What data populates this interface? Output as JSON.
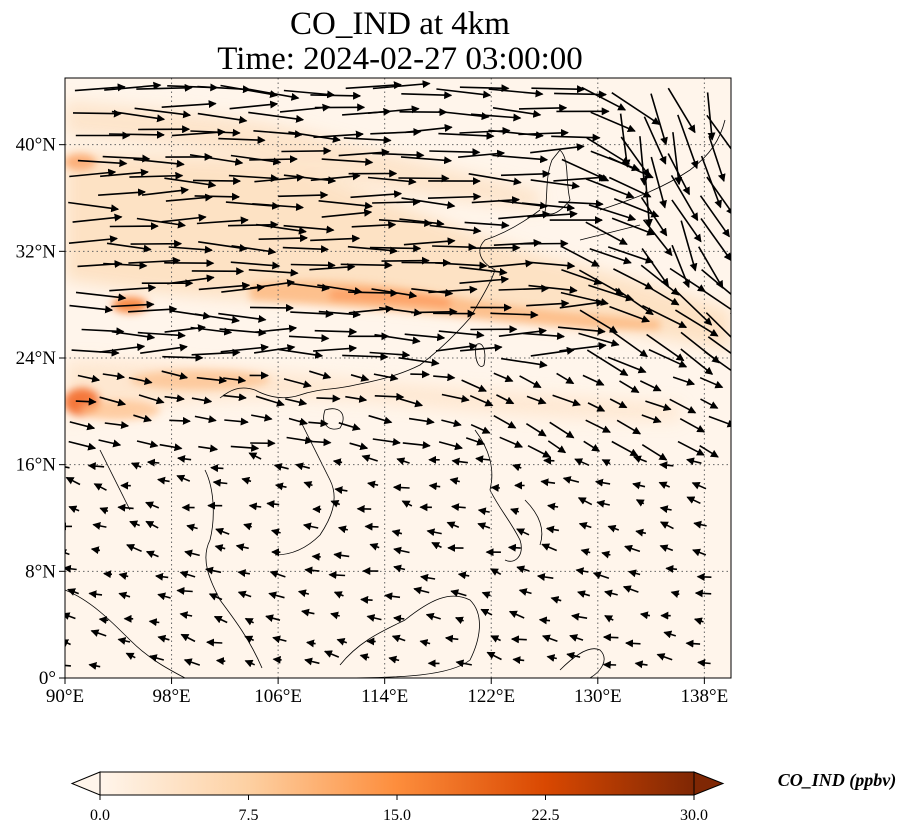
{
  "title": {
    "line1": "CO_IND at 4km",
    "line2": "Time: 2024-02-27 03:00:00"
  },
  "map": {
    "lon_range": [
      90,
      140
    ],
    "lat_range": [
      0,
      45
    ],
    "gridlines": "dotted",
    "x_ticks": [
      {
        "value": 90,
        "label": "90°E"
      },
      {
        "value": 98,
        "label": "98°E"
      },
      {
        "value": 106,
        "label": "106°E"
      },
      {
        "value": 114,
        "label": "114°E"
      },
      {
        "value": 122,
        "label": "122°E"
      },
      {
        "value": 130,
        "label": "130°E"
      },
      {
        "value": 138,
        "label": "138°E"
      }
    ],
    "y_ticks": [
      {
        "value": 0,
        "label": "0°"
      },
      {
        "value": 8,
        "label": "8°N"
      },
      {
        "value": 16,
        "label": "16°N"
      },
      {
        "value": 24,
        "label": "24°N"
      },
      {
        "value": 32,
        "label": "32°N"
      },
      {
        "value": 40,
        "label": "40°N"
      }
    ],
    "plume_description_visible": "shaded CO concentration with wind vectors"
  },
  "colorbar": {
    "label": "CO_IND (ppbv)",
    "min": 0.0,
    "max": 30.0,
    "extend": "both",
    "colors": [
      "#fff5eb",
      "#fdd0a2",
      "#fd8d3c",
      "#d94801",
      "#7f2704"
    ],
    "ticks": [
      "0.0",
      "7.5",
      "15.0",
      "22.5",
      "30.0"
    ]
  }
}
